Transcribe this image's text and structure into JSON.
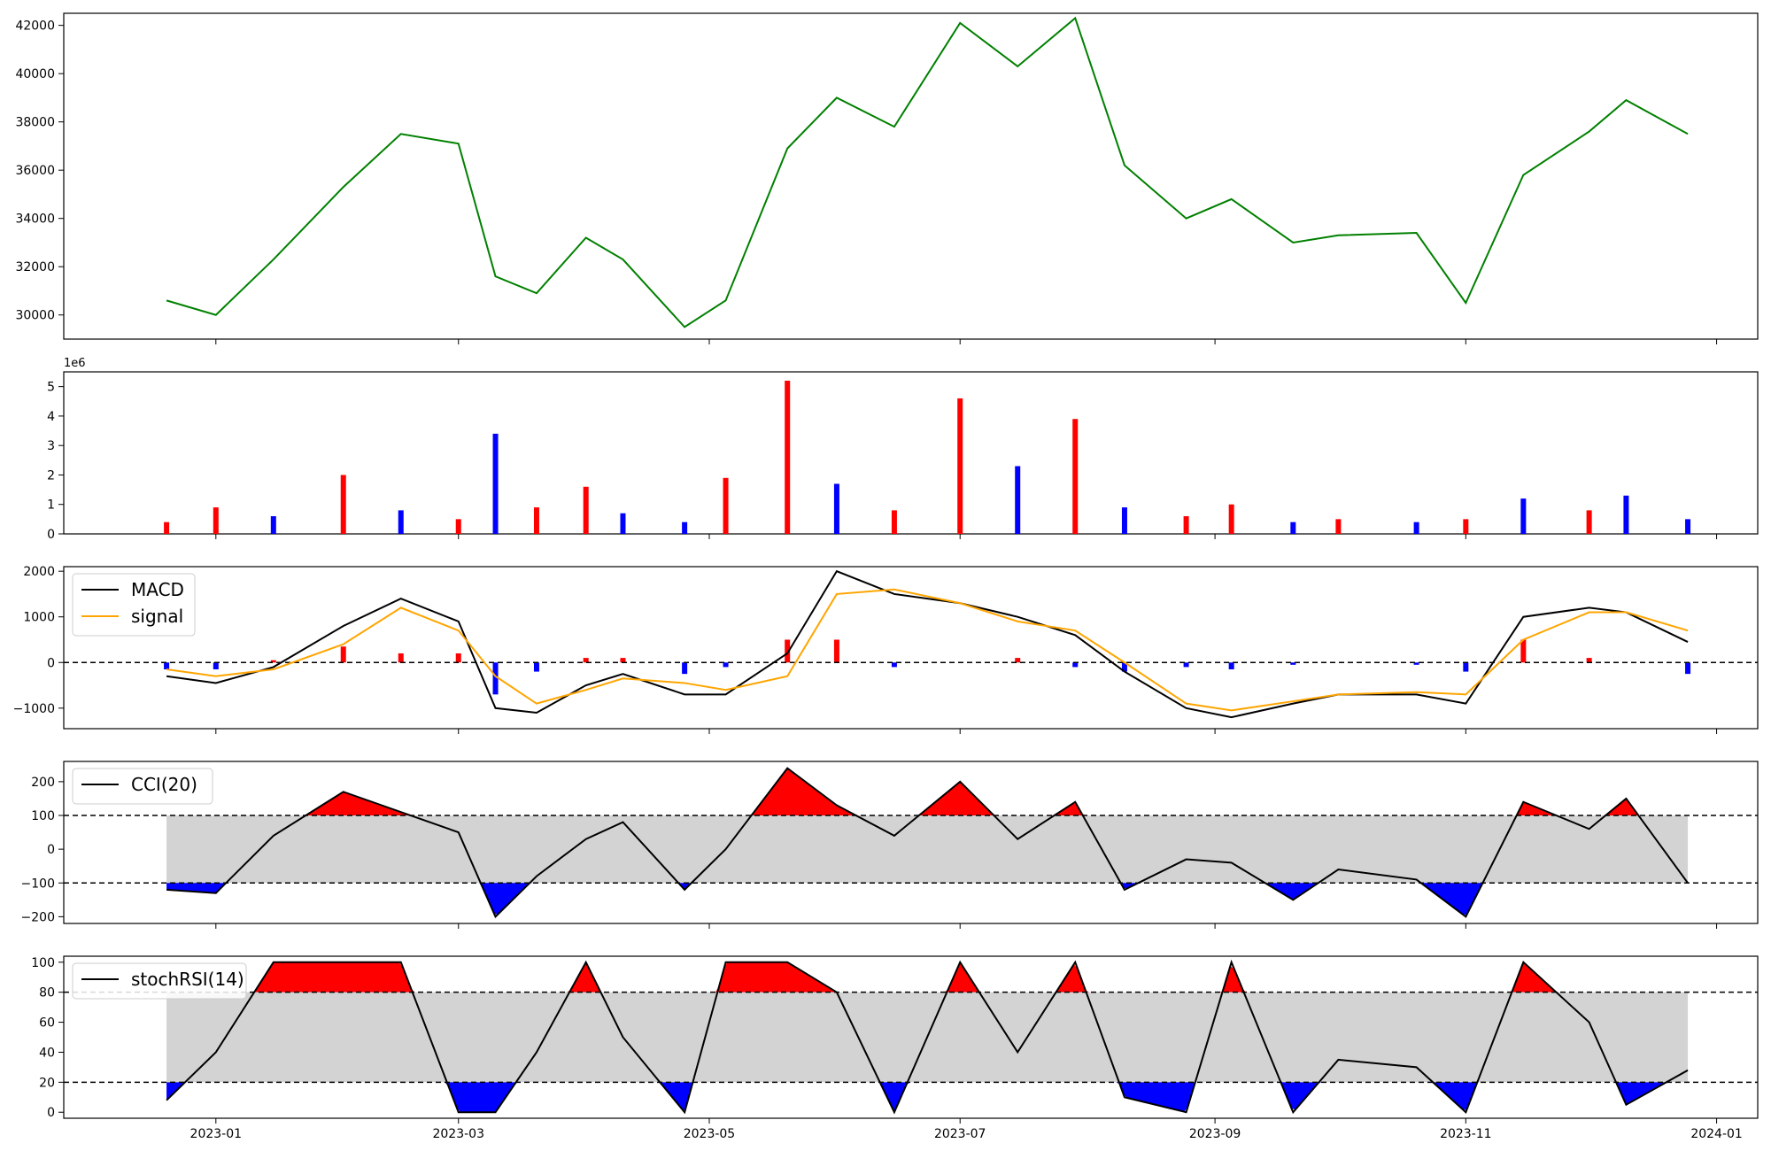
{
  "figure": {
    "x_ticks": [
      "2023-01",
      "2023-03",
      "2023-05",
      "2023-07",
      "2023-09",
      "2023-11",
      "2024-01"
    ]
  },
  "chart_data": [
    {
      "type": "line",
      "panel": "price",
      "ylim": [
        29000,
        42500
      ],
      "yticks": [
        "30000",
        "32000",
        "34000",
        "36000",
        "38000",
        "40000",
        "42000"
      ],
      "color": "#008000",
      "x": [
        "2022-12-20",
        "2023-01-01",
        "2023-01-15",
        "2023-02-01",
        "2023-02-15",
        "2023-03-01",
        "2023-03-10",
        "2023-03-20",
        "2023-04-01",
        "2023-04-10",
        "2023-04-25",
        "2023-05-05",
        "2023-05-20",
        "2023-06-01",
        "2023-06-15",
        "2023-07-01",
        "2023-07-15",
        "2023-07-29",
        "2023-08-10",
        "2023-08-25",
        "2023-09-05",
        "2023-09-20",
        "2023-10-01",
        "2023-10-20",
        "2023-11-01",
        "2023-11-15",
        "2023-12-01",
        "2023-12-10",
        "2023-12-25"
      ],
      "values": [
        30600,
        30000,
        32300,
        35300,
        37500,
        37100,
        31600,
        30900,
        33200,
        32300,
        29500,
        30600,
        36900,
        39000,
        37800,
        42100,
        40300,
        42300,
        36200,
        34000,
        34800,
        33000,
        33300,
        33400,
        30500,
        35800,
        37600,
        38900,
        37500
      ]
    },
    {
      "type": "bar",
      "panel": "volume",
      "scale_label": "1e6",
      "ylim": [
        0,
        5.5
      ],
      "yticks": [
        "0",
        "1",
        "2",
        "3",
        "4",
        "5"
      ],
      "colors": {
        "up": "#ff0000",
        "down": "#0000ff"
      },
      "x": [
        "2022-12-20",
        "2023-01-01",
        "2023-01-15",
        "2023-02-01",
        "2023-02-15",
        "2023-03-01",
        "2023-03-10",
        "2023-03-20",
        "2023-04-01",
        "2023-04-10",
        "2023-04-25",
        "2023-05-05",
        "2023-05-20",
        "2023-06-01",
        "2023-06-15",
        "2023-07-01",
        "2023-07-15",
        "2023-07-29",
        "2023-08-10",
        "2023-08-25",
        "2023-09-05",
        "2023-09-20",
        "2023-10-01",
        "2023-10-20",
        "2023-11-01",
        "2023-11-15",
        "2023-12-01",
        "2023-12-10",
        "2023-12-25"
      ],
      "values": [
        0.4,
        0.9,
        0.6,
        2.0,
        0.8,
        0.5,
        3.4,
        0.9,
        1.6,
        0.7,
        0.4,
        1.9,
        5.2,
        1.7,
        0.8,
        4.6,
        2.3,
        3.9,
        0.9,
        0.6,
        1.0,
        0.4,
        0.5,
        0.4,
        0.5,
        1.2,
        0.8,
        1.3,
        0.5
      ],
      "direction": [
        "up",
        "up",
        "down",
        "up",
        "down",
        "up",
        "down",
        "up",
        "up",
        "down",
        "down",
        "up",
        "up",
        "down",
        "up",
        "up",
        "down",
        "up",
        "down",
        "up",
        "up",
        "down",
        "up",
        "down",
        "up",
        "down",
        "up",
        "down",
        "down"
      ]
    },
    {
      "type": "line",
      "panel": "macd",
      "ylim": [
        -1450,
        2100
      ],
      "yticks": [
        "−1000",
        "0",
        "1000",
        "2000"
      ],
      "legend": [
        "MACD",
        "signal"
      ],
      "reference_lines": [
        0
      ],
      "x": [
        "2022-12-20",
        "2023-01-01",
        "2023-01-15",
        "2023-02-01",
        "2023-02-15",
        "2023-03-01",
        "2023-03-10",
        "2023-03-20",
        "2023-04-01",
        "2023-04-10",
        "2023-04-25",
        "2023-05-05",
        "2023-05-20",
        "2023-06-01",
        "2023-06-15",
        "2023-07-01",
        "2023-07-15",
        "2023-07-29",
        "2023-08-10",
        "2023-08-25",
        "2023-09-05",
        "2023-09-20",
        "2023-10-01",
        "2023-10-20",
        "2023-11-01",
        "2023-11-15",
        "2023-12-01",
        "2023-12-10",
        "2023-12-25"
      ],
      "series": [
        {
          "name": "MACD",
          "color": "#000000",
          "values": [
            -300,
            -450,
            -100,
            800,
            1400,
            900,
            -1000,
            -1100,
            -500,
            -250,
            -700,
            -700,
            200,
            2000,
            1500,
            1300,
            1000,
            600,
            -200,
            -1000,
            -1200,
            -900,
            -700,
            -700,
            -900,
            1000,
            1200,
            1100,
            450
          ]
        },
        {
          "name": "signal",
          "color": "#ffa500",
          "values": [
            -150,
            -300,
            -150,
            400,
            1200,
            700,
            -300,
            -900,
            -600,
            -350,
            -450,
            -600,
            -300,
            1500,
            1600,
            1300,
            900,
            700,
            0,
            -900,
            -1050,
            -850,
            -700,
            -650,
            -700,
            500,
            1100,
            1100,
            700
          ]
        }
      ],
      "histogram": {
        "colors": {
          "positive": "#ff0000",
          "negative": "#0000ff"
        },
        "values": [
          -150,
          -150,
          50,
          350,
          200,
          200,
          -700,
          -200,
          100,
          100,
          -250,
          -100,
          500,
          500,
          -100,
          0,
          100,
          -100,
          -200,
          -100,
          -150,
          -50,
          0,
          -50,
          -200,
          500,
          100,
          0,
          -250
        ]
      }
    },
    {
      "type": "area",
      "panel": "cci",
      "ylim": [
        -220,
        260
      ],
      "yticks": [
        "−200",
        "−100",
        "0",
        "100",
        "200"
      ],
      "legend": [
        "CCI(20)"
      ],
      "thresholds": [
        100,
        -100
      ],
      "band_color": "#d3d3d3",
      "fill_colors": {
        "above": "#ff0000",
        "below": "#0000ff"
      },
      "x": [
        "2022-12-20",
        "2023-01-01",
        "2023-01-15",
        "2023-02-01",
        "2023-02-15",
        "2023-03-01",
        "2023-03-10",
        "2023-03-20",
        "2023-04-01",
        "2023-04-10",
        "2023-04-25",
        "2023-05-05",
        "2023-05-20",
        "2023-06-01",
        "2023-06-15",
        "2023-07-01",
        "2023-07-15",
        "2023-07-29",
        "2023-08-10",
        "2023-08-25",
        "2023-09-05",
        "2023-09-20",
        "2023-10-01",
        "2023-10-20",
        "2023-11-01",
        "2023-11-15",
        "2023-12-01",
        "2023-12-10",
        "2023-12-25"
      ],
      "values": [
        -120,
        -130,
        40,
        170,
        110,
        50,
        -200,
        -80,
        30,
        80,
        -120,
        0,
        240,
        130,
        40,
        200,
        30,
        140,
        -120,
        -30,
        -40,
        -150,
        -60,
        -90,
        -200,
        140,
        60,
        150,
        -100
      ]
    },
    {
      "type": "area",
      "panel": "stochrsi",
      "ylim": [
        -4,
        104
      ],
      "yticks": [
        "0",
        "20",
        "40",
        "60",
        "80",
        "100"
      ],
      "legend": [
        "stochRSI(14)"
      ],
      "thresholds": [
        80,
        20
      ],
      "band_color": "#d3d3d3",
      "fill_colors": {
        "above": "#ff0000",
        "below": "#0000ff"
      },
      "x": [
        "2022-12-20",
        "2023-01-01",
        "2023-01-15",
        "2023-02-01",
        "2023-02-15",
        "2023-03-01",
        "2023-03-10",
        "2023-03-20",
        "2023-04-01",
        "2023-04-10",
        "2023-04-25",
        "2023-05-05",
        "2023-05-20",
        "2023-06-01",
        "2023-06-15",
        "2023-07-01",
        "2023-07-15",
        "2023-07-29",
        "2023-08-10",
        "2023-08-25",
        "2023-09-05",
        "2023-09-20",
        "2023-10-01",
        "2023-10-20",
        "2023-11-01",
        "2023-11-15",
        "2023-12-01",
        "2023-12-10",
        "2023-12-25"
      ],
      "values": [
        8,
        40,
        100,
        100,
        100,
        0,
        0,
        40,
        100,
        50,
        0,
        100,
        100,
        80,
        0,
        100,
        40,
        100,
        10,
        0,
        100,
        0,
        35,
        30,
        0,
        100,
        60,
        5,
        28
      ]
    }
  ]
}
